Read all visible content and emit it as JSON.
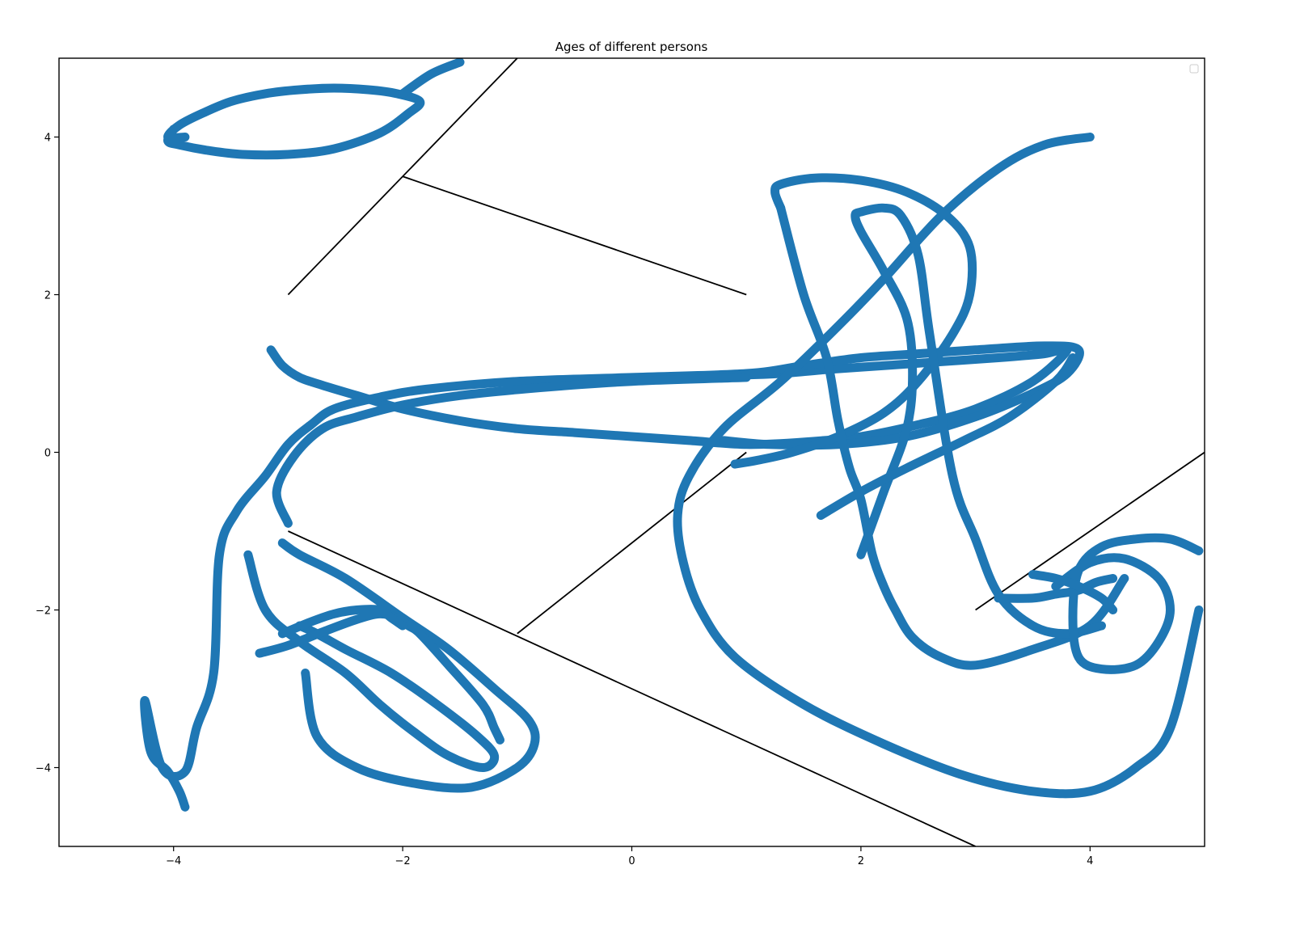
{
  "chart_data": {
    "type": "line",
    "title": "Ages of different persons",
    "xlabel": "",
    "ylabel": "",
    "xlim": [
      -5,
      5
    ],
    "ylim": [
      -5,
      5
    ],
    "xticks": [
      -4,
      -2,
      0,
      2,
      4
    ],
    "yticks": [
      -4,
      -2,
      0,
      2,
      4
    ],
    "xtick_labels": [
      "−4",
      "−2",
      "0",
      "2",
      "4"
    ],
    "ytick_labels": [
      "−4",
      "−2",
      "0",
      "2",
      "4"
    ],
    "grid": false,
    "legend": {
      "placement": "top-right",
      "entries": []
    },
    "colors": {
      "series": "#1f77b4",
      "lines": "#000000"
    },
    "series": [
      {
        "color": "#1f77b4",
        "x": [
          -3.15,
          -3.05,
          -2.9,
          -2.7,
          -2.4,
          -2.0,
          -1.5,
          -1.0,
          -0.5,
          0.0,
          0.5,
          1.0,
          1.5,
          2.0,
          2.5,
          3.0,
          3.5,
          3.8,
          3.6,
          3.2,
          2.7,
          2.2,
          1.7,
          1.3,
          1.0,
          0.7,
          0.5,
          0.3
        ],
        "y": [
          1.3,
          1.1,
          0.95,
          0.85,
          0.72,
          0.55,
          0.4,
          0.3,
          0.25,
          0.2,
          0.15,
          0.1,
          0.13,
          0.2,
          0.35,
          0.55,
          0.9,
          1.3,
          1.25,
          1.2,
          1.15,
          1.1,
          1.05,
          1.0,
          0.98,
          0.96,
          0.95,
          0.95
        ]
      },
      {
        "color": "#1f77b4",
        "x": [
          -4.0,
          -4.05,
          -3.95,
          -3.7,
          -3.4,
          -3.0,
          -2.6,
          -2.2,
          -1.95,
          -1.85,
          -2.05,
          -2.3,
          -2.6,
          -2.9,
          -3.2,
          -3.5,
          -3.75,
          -3.95,
          -4.05,
          -3.9
        ],
        "y": [
          4.1,
          3.95,
          3.9,
          3.83,
          3.78,
          3.78,
          3.85,
          4.05,
          4.3,
          4.45,
          4.55,
          4.6,
          4.62,
          4.6,
          4.55,
          4.45,
          4.3,
          4.15,
          4.0,
          4.0
        ]
      },
      {
        "color": "#1f77b4",
        "x": [
          -1.5,
          -1.75,
          -2.0
        ],
        "y": [
          4.95,
          4.8,
          4.55
        ]
      },
      {
        "color": "#1f77b4",
        "x": [
          -3.9,
          -3.95,
          -4.05,
          -4.2,
          -4.25,
          -4.1,
          -3.9,
          -3.8,
          -3.65,
          -3.6,
          -3.45,
          -3.2,
          -3.0,
          -2.8,
          -2.6,
          -2.2,
          -1.8,
          -1.0,
          0.0,
          1.0,
          1.5,
          2.0,
          2.5,
          3.0,
          3.6,
          3.9,
          3.8,
          3.5,
          3.0,
          2.4,
          1.8,
          1.2,
          0.8
        ],
        "y": [
          -4.5,
          -4.3,
          -4.05,
          -3.8,
          -3.15,
          -4.0,
          -4.05,
          -3.5,
          -2.8,
          -1.3,
          -0.75,
          -0.3,
          0.1,
          0.35,
          0.55,
          0.7,
          0.8,
          0.9,
          0.95,
          1.0,
          1.1,
          1.2,
          1.25,
          1.3,
          1.35,
          1.3,
          1.0,
          0.75,
          0.45,
          0.2,
          0.1,
          0.1,
          0.15
        ]
      },
      {
        "color": "#1f77b4",
        "x": [
          -3.0,
          -3.1,
          -2.95,
          -2.7,
          -2.4,
          -2.0,
          -1.5,
          -0.8,
          0.0,
          1.0
        ],
        "y": [
          -0.9,
          -0.5,
          -0.05,
          0.3,
          0.45,
          0.6,
          0.72,
          0.82,
          0.9,
          0.95
        ]
      },
      {
        "color": "#1f77b4",
        "x": [
          -3.35,
          -3.2,
          -2.9,
          -2.5,
          -2.2,
          -1.9,
          -1.6,
          -1.3,
          -1.2,
          -1.35,
          -1.7,
          -2.1,
          -2.5,
          -2.75,
          -2.9
        ],
        "y": [
          -1.3,
          -2.0,
          -2.4,
          -2.8,
          -3.2,
          -3.55,
          -3.85,
          -4.0,
          -3.85,
          -3.6,
          -3.2,
          -2.8,
          -2.5,
          -2.3,
          -2.2
        ]
      },
      {
        "color": "#1f77b4",
        "x": [
          -3.05,
          -2.9,
          -2.5,
          -2.0,
          -1.6,
          -1.2,
          -0.9,
          -0.85,
          -1.0,
          -1.4,
          -1.9,
          -2.4,
          -2.75,
          -2.85
        ],
        "y": [
          -1.15,
          -1.3,
          -1.6,
          -2.1,
          -2.5,
          -3.0,
          -3.4,
          -3.7,
          -4.0,
          -4.25,
          -4.2,
          -4.0,
          -3.6,
          -2.8
        ]
      },
      {
        "color": "#1f77b4",
        "x": [
          -3.25,
          -3.0,
          -2.7,
          -2.4,
          -2.2,
          -2.05,
          -1.95,
          -1.85,
          -1.6,
          -1.3,
          -1.2,
          -1.15
        ],
        "y": [
          -2.55,
          -2.45,
          -2.28,
          -2.12,
          -2.05,
          -2.1,
          -2.2,
          -2.3,
          -2.7,
          -3.2,
          -3.5,
          -3.65
        ]
      },
      {
        "color": "#1f77b4",
        "x": [
          -3.05,
          -2.8,
          -2.6,
          -2.4,
          -2.2,
          -2.1,
          -2.0
        ],
        "y": [
          -2.3,
          -2.15,
          -2.05,
          -2.0,
          -2.0,
          -2.1,
          -2.2
        ]
      },
      {
        "color": "#1f77b4",
        "x": [
          4.0,
          3.6,
          3.2,
          2.7,
          2.2,
          1.8,
          1.3,
          0.8,
          0.5,
          0.4,
          0.45,
          0.6,
          0.9,
          1.5,
          2.2,
          2.9,
          3.5,
          4.0,
          4.4,
          4.7,
          4.95
        ],
        "y": [
          4.0,
          3.9,
          3.6,
          3.0,
          2.2,
          1.6,
          0.9,
          0.3,
          -0.3,
          -0.8,
          -1.4,
          -2.0,
          -2.6,
          -3.2,
          -3.7,
          -4.1,
          -4.3,
          -4.3,
          -4.0,
          -3.5,
          -2.0
        ]
      },
      {
        "color": "#1f77b4",
        "x": [
          1.3,
          1.25,
          1.3,
          1.6,
          2.0,
          2.4,
          2.75,
          2.95,
          2.95,
          2.8,
          2.5,
          2.2,
          1.8,
          1.4,
          1.1,
          0.9
        ],
        "y": [
          3.1,
          3.3,
          3.4,
          3.48,
          3.45,
          3.3,
          3.0,
          2.6,
          2.0,
          1.5,
          0.9,
          0.5,
          0.2,
          0.0,
          -0.1,
          -0.15
        ]
      },
      {
        "color": "#1f77b4",
        "x": [
          1.3,
          1.5,
          1.7,
          1.8,
          1.9,
          2.0,
          2.1,
          2.2,
          2.3,
          2.45,
          2.7,
          3.0,
          3.5,
          4.0,
          4.3
        ],
        "y": [
          3.1,
          2.0,
          1.2,
          0.4,
          -0.2,
          -0.6,
          -1.3,
          -1.7,
          -2.0,
          -2.35,
          -2.6,
          -2.7,
          -2.5,
          -2.2,
          -1.6
        ]
      },
      {
        "color": "#1f77b4",
        "x": [
          2.0,
          2.2,
          2.4,
          2.45,
          2.4,
          2.2,
          2.0,
          1.95,
          2.0,
          2.2,
          2.35,
          2.5,
          2.6,
          2.8,
          3.0,
          3.2,
          3.5,
          3.8,
          4.1
        ],
        "y": [
          -1.3,
          -0.5,
          0.3,
          1.0,
          1.7,
          2.3,
          2.8,
          3.0,
          3.05,
          3.1,
          3.0,
          2.5,
          1.5,
          -0.3,
          -1.1,
          -1.8,
          -2.2,
          -2.3,
          -2.2
        ]
      },
      {
        "color": "#1f77b4",
        "x": [
          1.65,
          2.0,
          2.4,
          2.9,
          3.3,
          3.7,
          3.85
        ],
        "y": [
          -0.8,
          -0.5,
          -0.2,
          0.15,
          0.45,
          0.9,
          1.2
        ]
      },
      {
        "color": "#1f77b4",
        "x": [
          4.95,
          4.7,
          4.4,
          4.1,
          3.9,
          3.85,
          3.9,
          4.1,
          4.4,
          4.6,
          4.7,
          4.6,
          4.3,
          4.0,
          3.7
        ],
        "y": [
          -1.25,
          -1.1,
          -1.1,
          -1.2,
          -1.5,
          -2.1,
          -2.6,
          -2.75,
          -2.7,
          -2.4,
          -2.0,
          -1.6,
          -1.35,
          -1.4,
          -1.7
        ]
      },
      {
        "color": "#1f77b4",
        "x": [
          3.2,
          3.5,
          3.7,
          3.9,
          4.05,
          4.2
        ],
        "y": [
          -1.85,
          -1.85,
          -1.8,
          -1.75,
          -1.65,
          -1.6
        ]
      },
      {
        "color": "#1f77b4",
        "x": [
          3.5,
          3.7,
          3.9,
          4.1,
          4.2
        ],
        "y": [
          -1.55,
          -1.6,
          -1.7,
          -1.85,
          -2.0
        ]
      }
    ],
    "lines": [
      {
        "color": "#000000",
        "x": [
          -3,
          -1
        ],
        "y": [
          2,
          5
        ]
      },
      {
        "color": "#000000",
        "x": [
          -2,
          1
        ],
        "y": [
          3.5,
          2
        ]
      },
      {
        "color": "#000000",
        "x": [
          -3,
          3
        ],
        "y": [
          -1,
          -5
        ]
      },
      {
        "color": "#000000",
        "x": [
          -1,
          1
        ],
        "y": [
          -2.3,
          0
        ]
      },
      {
        "color": "#000000",
        "x": [
          3,
          5
        ],
        "y": [
          -2,
          0
        ]
      }
    ]
  }
}
